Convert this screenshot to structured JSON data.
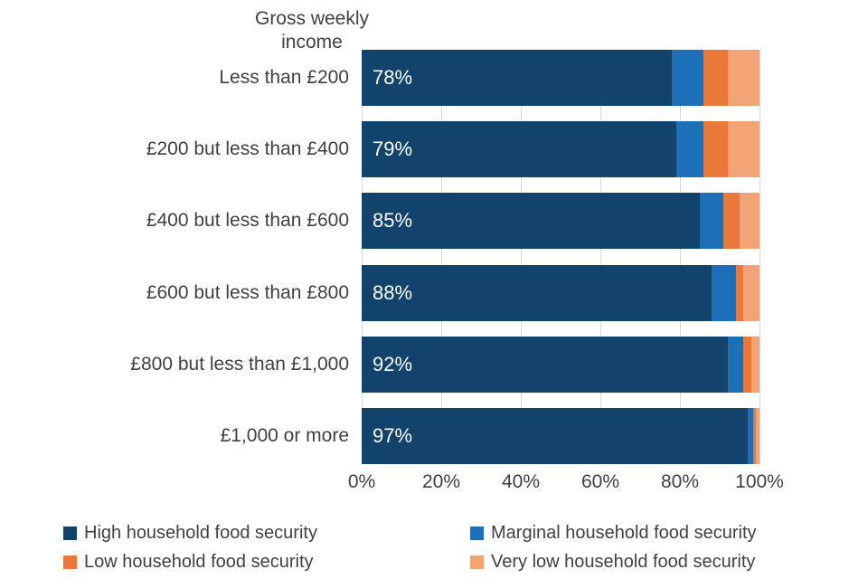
{
  "title": {
    "line1": "Gross weekly",
    "line2": "income"
  },
  "colors": {
    "high": "#12436D",
    "marginal": "#1D70B8",
    "low": "#E8793B",
    "very_low": "#F2A477",
    "grid": "#D6D6D6",
    "text": "#404040",
    "bar_label": "#FFFFFF"
  },
  "chart_data": {
    "type": "bar",
    "orientation": "horizontal",
    "stacked": true,
    "title": "Gross weekly income",
    "categories": [
      "Less than £200",
      "£200 but less than £400",
      "£400 but less than £600",
      "£600 but less than £800",
      "£800 but less than £1,000",
      "£1,000 or more"
    ],
    "series": [
      {
        "name": "High household food security",
        "color": "#12436D",
        "values": [
          78,
          79,
          85,
          88,
          92,
          97
        ]
      },
      {
        "name": "Marginal household food security",
        "color": "#1D70B8",
        "values": [
          8,
          7,
          6,
          6,
          4,
          1.5
        ]
      },
      {
        "name": "Low household food security",
        "color": "#E8793B",
        "values": [
          6,
          6,
          4,
          2,
          2,
          0.5
        ]
      },
      {
        "name": "Very low household food security",
        "color": "#F2A477",
        "values": [
          8,
          8,
          5,
          4,
          2,
          1
        ]
      }
    ],
    "bar_labels": [
      "78%",
      "79%",
      "85%",
      "88%",
      "92%",
      "97%"
    ],
    "x_ticks": [
      "0%",
      "20%",
      "40%",
      "60%",
      "80%",
      "100%"
    ],
    "xlim": [
      0,
      100
    ],
    "grid": true,
    "legend_position": "bottom"
  }
}
